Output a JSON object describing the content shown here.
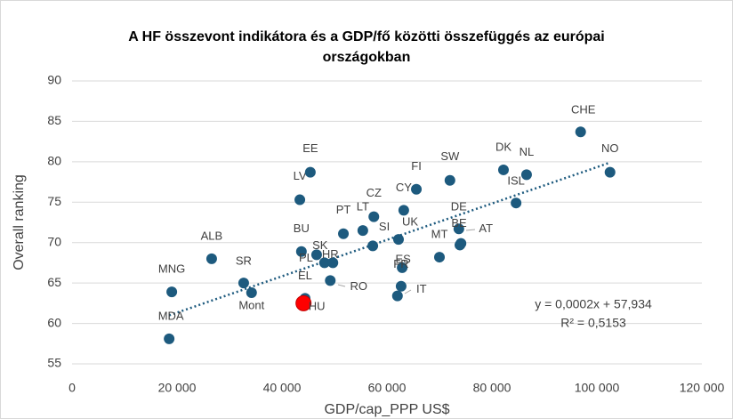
{
  "chart_data": {
    "type": "scatter",
    "title": "A HF összevont indikátora és a GDP/fő közötti összefüggés az európai országokban",
    "xlabel": "GDP/cap_PPP US$",
    "ylabel": "Overall ranking",
    "labels": [
      "MNG",
      "MDA",
      "ALB",
      "SR",
      "Mont",
      "LV",
      "BU",
      "EL",
      "HU",
      "EE",
      "PL",
      "SK",
      "HR",
      "RO",
      "PT",
      "LT",
      "CZ",
      "SI",
      "UK",
      "CY",
      "FI",
      "ES",
      "FR",
      "IT",
      "MT",
      "SW",
      "DE",
      "BE",
      "AT",
      "DK",
      "NL",
      "ISL",
      "CHE",
      "NO"
    ],
    "x": [
      19000,
      18500,
      26600,
      32700,
      34200,
      43400,
      43700,
      44400,
      44100,
      45400,
      46600,
      48100,
      49700,
      49200,
      51700,
      55400,
      57500,
      57300,
      62200,
      63200,
      65600,
      62900,
      62700,
      62000,
      70000,
      72000,
      73700,
      73900,
      74100,
      82200,
      86600,
      84600,
      96900,
      102500
    ],
    "y": [
      63.9,
      58.1,
      68.0,
      65.0,
      63.8,
      75.3,
      68.9,
      63.1,
      62.5,
      78.7,
      68.5,
      67.5,
      67.5,
      65.3,
      71.1,
      71.5,
      73.2,
      69.6,
      70.4,
      74.0,
      76.6,
      66.9,
      64.6,
      63.4,
      68.2,
      77.7,
      71.7,
      69.7,
      69.9,
      79.0,
      78.4,
      74.9,
      83.7,
      78.7
    ],
    "colors": [
      "#1d5a7e",
      "#1d5a7e",
      "#1d5a7e",
      "#1d5a7e",
      "#1d5a7e",
      "#1d5a7e",
      "#1d5a7e",
      "#1d5a7e",
      "#ff0000",
      "#1d5a7e",
      "#1d5a7e",
      "#1d5a7e",
      "#1d5a7e",
      "#1d5a7e",
      "#1d5a7e",
      "#1d5a7e",
      "#1d5a7e",
      "#1d5a7e",
      "#1d5a7e",
      "#1d5a7e",
      "#1d5a7e",
      "#1d5a7e",
      "#1d5a7e",
      "#1d5a7e",
      "#1d5a7e",
      "#1d5a7e",
      "#1d5a7e",
      "#1d5a7e",
      "#1d5a7e",
      "#1d5a7e",
      "#1d5a7e",
      "#1d5a7e",
      "#1d5a7e",
      "#1d5a7e"
    ],
    "trendline": {
      "x": [
        18500,
        102500
      ],
      "y": [
        61.0,
        79.9
      ],
      "color": "#1d5a7e",
      "equation": "y = 0,0002x + 57,934",
      "r2": "R² = 0,5153"
    },
    "xlim": [
      0,
      120000
    ],
    "xticks": [
      0,
      {
        "value": 20000,
        "label": "20 000"
      },
      {
        "value": 40000,
        "label": "40 000"
      },
      {
        "value": 60000,
        "label": "60 000"
      },
      {
        "value": 80000,
        "label": "80 000"
      },
      {
        "value": 100000,
        "label": "100 000"
      },
      {
        "value": 120000,
        "label": "120 000"
      }
    ],
    "ylim": [
      55,
      90
    ],
    "yticks": [
      55,
      60,
      65,
      70,
      75,
      80,
      85,
      90
    ],
    "grid": true
  }
}
